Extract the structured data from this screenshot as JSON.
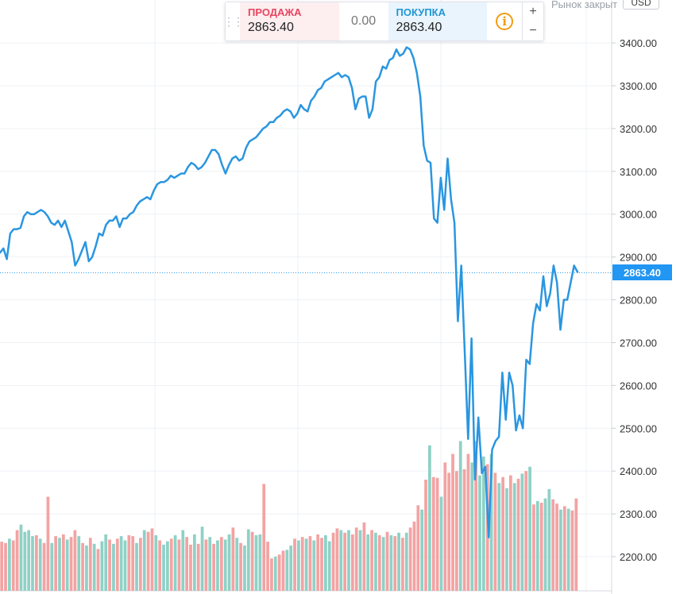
{
  "trade": {
    "sell_label": "ПРОДАЖА",
    "sell_price": "2863.40",
    "spread": "0.00",
    "buy_label": "ПОКУПКА",
    "buy_price": "2863.40",
    "info_icon": "i",
    "plus": "+",
    "minus": "−"
  },
  "market_status": "Рынок закрыт",
  "currency": "USD",
  "current_price_label": "2863.40",
  "colors": {
    "line": "#2a96e0",
    "volume_up": "#8fd1c6",
    "volume_down": "#f3a3a3",
    "price_badge": "#2196f3",
    "grid": "#eef1f5"
  },
  "chart_data": {
    "type": "line",
    "title": "",
    "xlabel": "",
    "ylabel": "",
    "ylim": [
      2180,
      3460
    ],
    "yticks": [
      "2200.00",
      "2300.00",
      "2400.00",
      "2500.00",
      "2600.00",
      "2700.00",
      "2800.00",
      "2900.00",
      "3000.00",
      "3100.00",
      "3200.00",
      "3300.00",
      "3400.00"
    ],
    "grid": true,
    "current_price": 2863.4,
    "price": [
      2910,
      2920,
      2895,
      2955,
      2965,
      2965,
      2968,
      2995,
      3005,
      3000,
      3000,
      3005,
      3010,
      3005,
      2995,
      2980,
      2975,
      2985,
      2970,
      2985,
      2960,
      2935,
      2880,
      2895,
      2915,
      2935,
      2890,
      2900,
      2925,
      2955,
      2950,
      2975,
      2985,
      2985,
      2995,
      2970,
      2990,
      2990,
      3000,
      3005,
      3020,
      3030,
      3035,
      3040,
      3035,
      3055,
      3070,
      3075,
      3075,
      3080,
      3090,
      3085,
      3090,
      3095,
      3095,
      3110,
      3120,
      3115,
      3105,
      3110,
      3120,
      3135,
      3150,
      3150,
      3140,
      3115,
      3095,
      3115,
      3130,
      3135,
      3125,
      3130,
      3155,
      3170,
      3175,
      3180,
      3190,
      3200,
      3205,
      3215,
      3215,
      3225,
      3230,
      3240,
      3245,
      3240,
      3225,
      3235,
      3255,
      3245,
      3240,
      3265,
      3275,
      3290,
      3295,
      3310,
      3315,
      3320,
      3325,
      3330,
      3320,
      3325,
      3320,
      3295,
      3245,
      3270,
      3275,
      3275,
      3225,
      3245,
      3310,
      3320,
      3345,
      3340,
      3360,
      3365,
      3385,
      3370,
      3375,
      3390,
      3385,
      3365,
      3330,
      3275,
      3160,
      3125,
      3120,
      2990,
      2980,
      3085,
      3010,
      3130,
      3035,
      2980,
      2750,
      2880,
      2680,
      2475,
      2710,
      2380,
      2525,
      2395,
      2410,
      2245,
      2450,
      2470,
      2480,
      2630,
      2520,
      2630,
      2600,
      2495,
      2530,
      2500,
      2660,
      2650,
      2745,
      2790,
      2775,
      2855,
      2785,
      2815,
      2880,
      2840,
      2730,
      2800,
      2800,
      2840,
      2880,
      2865
    ],
    "volume": [
      {
        "v": 2235,
        "up": false
      },
      {
        "v": 2232,
        "up": false
      },
      {
        "v": 2242,
        "up": true
      },
      {
        "v": 2238,
        "up": false
      },
      {
        "v": 2262,
        "up": false
      },
      {
        "v": 2275,
        "up": true
      },
      {
        "v": 2258,
        "up": true
      },
      {
        "v": 2262,
        "up": true
      },
      {
        "v": 2248,
        "up": true
      },
      {
        "v": 2250,
        "up": false
      },
      {
        "v": 2242,
        "up": true
      },
      {
        "v": 2232,
        "up": false
      },
      {
        "v": 2340,
        "up": false
      },
      {
        "v": 2232,
        "up": true
      },
      {
        "v": 2248,
        "up": false
      },
      {
        "v": 2244,
        "up": true
      },
      {
        "v": 2252,
        "up": false
      },
      {
        "v": 2240,
        "up": true
      },
      {
        "v": 2246,
        "up": false
      },
      {
        "v": 2262,
        "up": false
      },
      {
        "v": 2248,
        "up": true
      },
      {
        "v": 2232,
        "up": false
      },
      {
        "v": 2226,
        "up": true
      },
      {
        "v": 2244,
        "up": false
      },
      {
        "v": 2230,
        "up": true
      },
      {
        "v": 2218,
        "up": false
      },
      {
        "v": 2236,
        "up": true
      },
      {
        "v": 2252,
        "up": true
      },
      {
        "v": 2240,
        "up": false
      },
      {
        "v": 2230,
        "up": true
      },
      {
        "v": 2242,
        "up": false
      },
      {
        "v": 2248,
        "up": true
      },
      {
        "v": 2238,
        "up": true
      },
      {
        "v": 2250,
        "up": false
      },
      {
        "v": 2248,
        "up": false
      },
      {
        "v": 2232,
        "up": true
      },
      {
        "v": 2244,
        "up": false
      },
      {
        "v": 2262,
        "up": true
      },
      {
        "v": 2258,
        "up": false
      },
      {
        "v": 2266,
        "up": false
      },
      {
        "v": 2250,
        "up": true
      },
      {
        "v": 2238,
        "up": false
      },
      {
        "v": 2228,
        "up": true
      },
      {
        "v": 2236,
        "up": true
      },
      {
        "v": 2242,
        "up": false
      },
      {
        "v": 2250,
        "up": true
      },
      {
        "v": 2240,
        "up": false
      },
      {
        "v": 2262,
        "up": true
      },
      {
        "v": 2246,
        "up": false
      },
      {
        "v": 2228,
        "up": false
      },
      {
        "v": 2252,
        "up": true
      },
      {
        "v": 2230,
        "up": false
      },
      {
        "v": 2270,
        "up": true
      },
      {
        "v": 2240,
        "up": false
      },
      {
        "v": 2246,
        "up": true
      },
      {
        "v": 2230,
        "up": false
      },
      {
        "v": 2238,
        "up": true
      },
      {
        "v": 2246,
        "up": false
      },
      {
        "v": 2240,
        "up": true
      },
      {
        "v": 2252,
        "up": true
      },
      {
        "v": 2268,
        "up": false
      },
      {
        "v": 2244,
        "up": true
      },
      {
        "v": 2232,
        "up": false
      },
      {
        "v": 2226,
        "up": true
      },
      {
        "v": 2264,
        "up": true
      },
      {
        "v": 2258,
        "up": false
      },
      {
        "v": 2250,
        "up": true
      },
      {
        "v": 2252,
        "up": true
      },
      {
        "v": 2370,
        "up": false
      },
      {
        "v": 2235,
        "up": false
      },
      {
        "v": 2196,
        "up": false
      },
      {
        "v": 2200,
        "up": true
      },
      {
        "v": 2205,
        "up": false
      },
      {
        "v": 2214,
        "up": false
      },
      {
        "v": 2216,
        "up": true
      },
      {
        "v": 2226,
        "up": true
      },
      {
        "v": 2242,
        "up": false
      },
      {
        "v": 2238,
        "up": true
      },
      {
        "v": 2246,
        "up": false
      },
      {
        "v": 2242,
        "up": true
      },
      {
        "v": 2248,
        "up": false
      },
      {
        "v": 2238,
        "up": true
      },
      {
        "v": 2252,
        "up": false
      },
      {
        "v": 2244,
        "up": false
      },
      {
        "v": 2250,
        "up": true
      },
      {
        "v": 2236,
        "up": true
      },
      {
        "v": 2256,
        "up": false
      },
      {
        "v": 2266,
        "up": false
      },
      {
        "v": 2262,
        "up": true
      },
      {
        "v": 2256,
        "up": false
      },
      {
        "v": 2262,
        "up": true
      },
      {
        "v": 2252,
        "up": false
      },
      {
        "v": 2268,
        "up": false
      },
      {
        "v": 2262,
        "up": true
      },
      {
        "v": 2280,
        "up": false
      },
      {
        "v": 2252,
        "up": true
      },
      {
        "v": 2262,
        "up": false
      },
      {
        "v": 2256,
        "up": true
      },
      {
        "v": 2250,
        "up": false
      },
      {
        "v": 2246,
        "up": true
      },
      {
        "v": 2258,
        "up": false
      },
      {
        "v": 2250,
        "up": true
      },
      {
        "v": 2248,
        "up": false
      },
      {
        "v": 2256,
        "up": true
      },
      {
        "v": 2244,
        "up": false
      },
      {
        "v": 2256,
        "up": true
      },
      {
        "v": 2268,
        "up": false
      },
      {
        "v": 2282,
        "up": false
      },
      {
        "v": 2320,
        "up": false
      },
      {
        "v": 2310,
        "up": true
      },
      {
        "v": 2380,
        "up": false
      },
      {
        "v": 2460,
        "up": true
      },
      {
        "v": 2386,
        "up": false
      },
      {
        "v": 2384,
        "up": false
      },
      {
        "v": 2340,
        "up": true
      },
      {
        "v": 2420,
        "up": false
      },
      {
        "v": 2396,
        "up": false
      },
      {
        "v": 2440,
        "up": false
      },
      {
        "v": 2400,
        "up": false
      },
      {
        "v": 2470,
        "up": true
      },
      {
        "v": 2404,
        "up": false
      },
      {
        "v": 2440,
        "up": false
      },
      {
        "v": 2420,
        "up": true
      },
      {
        "v": 2470,
        "up": false
      },
      {
        "v": 2390,
        "up": true
      },
      {
        "v": 2434,
        "up": true
      },
      {
        "v": 2416,
        "up": false
      },
      {
        "v": 2440,
        "up": true
      },
      {
        "v": 2396,
        "up": false
      },
      {
        "v": 2372,
        "up": true
      },
      {
        "v": 2386,
        "up": false
      },
      {
        "v": 2360,
        "up": true
      },
      {
        "v": 2390,
        "up": false
      },
      {
        "v": 2372,
        "up": true
      },
      {
        "v": 2382,
        "up": false
      },
      {
        "v": 2394,
        "up": true
      },
      {
        "v": 2400,
        "up": false
      },
      {
        "v": 2410,
        "up": true
      },
      {
        "v": 2322,
        "up": false
      },
      {
        "v": 2330,
        "up": true
      },
      {
        "v": 2326,
        "up": false
      },
      {
        "v": 2336,
        "up": true
      },
      {
        "v": 2358,
        "up": true
      },
      {
        "v": 2334,
        "up": false
      },
      {
        "v": 2324,
        "up": false
      },
      {
        "v": 2310,
        "up": true
      },
      {
        "v": 2318,
        "up": false
      },
      {
        "v": 2312,
        "up": true
      },
      {
        "v": 2308,
        "up": false
      },
      {
        "v": 2336,
        "up": false
      }
    ]
  }
}
